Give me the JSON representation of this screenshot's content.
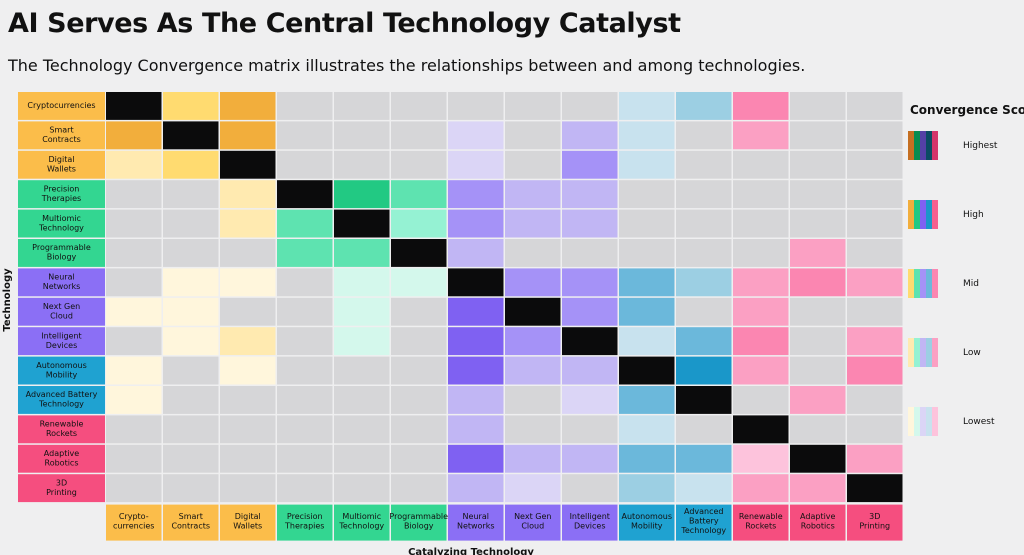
{
  "header": {
    "title": "AI Serves As The Central Technology Catalyst",
    "subtitle": "The Technology Convergence matrix illustrates the relationships between and among technologies."
  },
  "chart_data": {
    "type": "heatmap",
    "ylabel": "Technology",
    "xlabel": "Catalyzing Technology",
    "row_labels": [
      [
        "Cryptocurrencies"
      ],
      [
        "Smart",
        "Contracts"
      ],
      [
        "Digital",
        "Wallets"
      ],
      [
        "Precision",
        "Therapies"
      ],
      [
        "Multiomic",
        "Technology"
      ],
      [
        "Programmable",
        "Biology"
      ],
      [
        "Neural",
        "Networks"
      ],
      [
        "Next Gen",
        "Cloud"
      ],
      [
        "Intelligent",
        "Devices"
      ],
      [
        "Autonomous",
        "Mobility"
      ],
      [
        "Advanced Battery",
        "Technology"
      ],
      [
        "Renewable",
        "Rockets"
      ],
      [
        "Adaptive",
        "Robotics"
      ],
      [
        "3D",
        "Printing"
      ]
    ],
    "col_labels": [
      [
        "Crypto-",
        "currencies"
      ],
      [
        "Smart",
        "Contracts"
      ],
      [
        "Digital",
        "Wallets"
      ],
      [
        "Precision",
        "Therapies"
      ],
      [
        "Multiomic",
        "Technology"
      ],
      [
        "Programmable",
        "Biology"
      ],
      [
        "Neural",
        "Networks"
      ],
      [
        "Next Gen",
        "Cloud"
      ],
      [
        "Intelligent",
        "Devices"
      ],
      [
        "Autonomous",
        "Mobility"
      ],
      [
        "Advanced",
        "Battery",
        "Technology"
      ],
      [
        "Renewable",
        "Rockets"
      ],
      [
        "Adaptive",
        "Robotics"
      ],
      [
        "3D",
        "Printing"
      ]
    ],
    "groups": [
      {
        "name": "blockchain",
        "members": [
          0,
          1,
          2
        ],
        "shades": [
          "#fff6dc",
          "#ffeab0",
          "#ffdb70",
          "#f2ae3c",
          "#c56f22"
        ],
        "label_color": "#fbbd4a"
      },
      {
        "name": "biology",
        "members": [
          3,
          4,
          5
        ],
        "shades": [
          "#d4f8ec",
          "#95f2d3",
          "#5ee3b0",
          "#22c983",
          "#078c50"
        ],
        "label_color": "#33d691"
      },
      {
        "name": "ai",
        "members": [
          6,
          7,
          8
        ],
        "shades": [
          "#dbd5f6",
          "#c1b6f4",
          "#a592f7",
          "#7f61f2",
          "#5440a6"
        ],
        "label_color": "#8b6ff5"
      },
      {
        "name": "energy",
        "members": [
          9,
          10
        ],
        "shades": [
          "#c8e2ee",
          "#9ccfe3",
          "#6bb8db",
          "#1a97c9",
          "#0b4b63"
        ],
        "label_color": "#1fa2d1"
      },
      {
        "name": "robotics",
        "members": [
          11,
          12,
          13
        ],
        "shades": [
          "#fdc3dc",
          "#fba0c3",
          "#fb86b1",
          "#f5608f",
          "#d4346a"
        ],
        "label_color": "#f54e7f"
      }
    ],
    "empty_color": "#d6d6d8",
    "diagonal_color": "#0b0b0c",
    "scale_levels": [
      "Highest",
      "High",
      "Mid",
      "Low",
      "Lowest"
    ],
    "matrix": [
      [
        9,
        3,
        4,
        0,
        0,
        0,
        0,
        0,
        0,
        1,
        2,
        3,
        0,
        0
      ],
      [
        4,
        9,
        4,
        0,
        0,
        0,
        1,
        0,
        2,
        1,
        0,
        2,
        0,
        0
      ],
      [
        2,
        3,
        9,
        0,
        0,
        0,
        1,
        0,
        3,
        1,
        0,
        0,
        0,
        0
      ],
      [
        0,
        0,
        2,
        9,
        4,
        3,
        3,
        2,
        2,
        0,
        0,
        0,
        0,
        0
      ],
      [
        0,
        0,
        2,
        3,
        9,
        2,
        3,
        2,
        2,
        0,
        0,
        0,
        0,
        0
      ],
      [
        0,
        0,
        0,
        3,
        3,
        9,
        2,
        0,
        0,
        0,
        0,
        0,
        2,
        0
      ],
      [
        0,
        1,
        1,
        0,
        1,
        1,
        9,
        3,
        3,
        3,
        2,
        2,
        3,
        2
      ],
      [
        1,
        1,
        0,
        0,
        1,
        0,
        4,
        9,
        3,
        3,
        0,
        2,
        0,
        0
      ],
      [
        0,
        1,
        2,
        0,
        1,
        0,
        4,
        3,
        9,
        1,
        3,
        3,
        0,
        2
      ],
      [
        1,
        0,
        1,
        0,
        0,
        0,
        4,
        2,
        2,
        9,
        4,
        2,
        0,
        3
      ],
      [
        1,
        0,
        0,
        0,
        0,
        0,
        2,
        0,
        1,
        3,
        9,
        0,
        2,
        0
      ],
      [
        0,
        0,
        0,
        0,
        0,
        0,
        2,
        0,
        0,
        1,
        0,
        9,
        0,
        0
      ],
      [
        0,
        0,
        0,
        0,
        0,
        0,
        4,
        2,
        2,
        3,
        3,
        1,
        9,
        2
      ],
      [
        0,
        0,
        0,
        0,
        0,
        0,
        2,
        1,
        0,
        2,
        1,
        2,
        2,
        9
      ]
    ]
  }
}
